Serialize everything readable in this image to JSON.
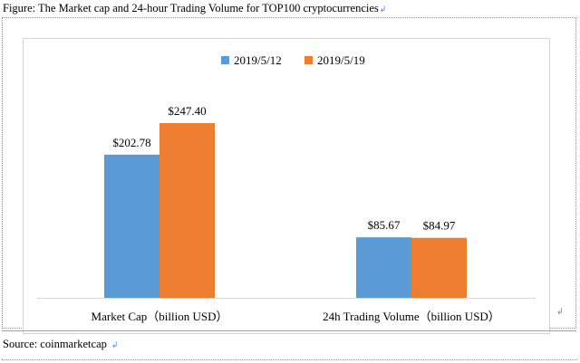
{
  "figure": {
    "caption": "Figure: The Market cap and 24-hour Trading Volume for TOP100 cryptocurrencies",
    "source": "Source: coinmarketcap",
    "paragraph_mark": "↲"
  },
  "chart_data": {
    "type": "bar",
    "title": "",
    "xlabel": "",
    "ylabel": "",
    "ylim": [
      0,
      247.4
    ],
    "grid": false,
    "legend_position": "top-center",
    "categories": [
      "Market Cap（billion USD）",
      "24h Trading Volume（billion USD）"
    ],
    "series": [
      {
        "name": "2019/5/12",
        "values": [
          202.78,
          85.67
        ],
        "labels": [
          "$202.78",
          "$85.67"
        ],
        "color": "#5b9bd5"
      },
      {
        "name": "2019/5/19",
        "values": [
          247.4,
          84.97
        ],
        "labels": [
          "$247.40",
          "$84.97"
        ],
        "color": "#ed7d31"
      }
    ]
  }
}
